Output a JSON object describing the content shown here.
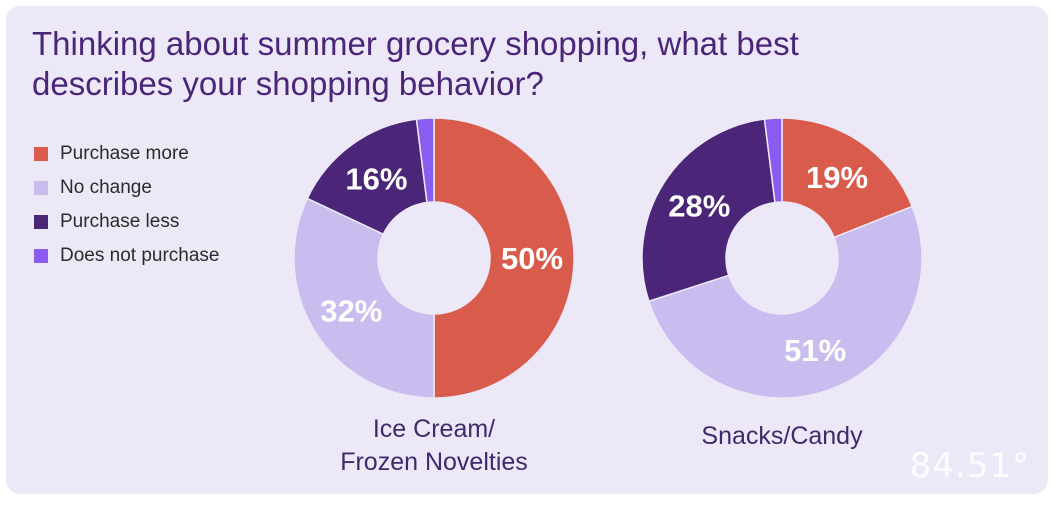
{
  "title": "Thinking about summer grocery shopping, what best describes your shopping behavior?",
  "logo_text": "84.51°",
  "colors": {
    "purchase_more": "#d95b4b",
    "no_change": "#c9bcef",
    "purchase_less": "#4b2577",
    "does_not_purchase": "#8b5cf0"
  },
  "legend": [
    {
      "label": "Purchase more",
      "color": "#d95b4b"
    },
    {
      "label": "No change",
      "color": "#c9bcef"
    },
    {
      "label": "Purchase less",
      "color": "#4b2577"
    },
    {
      "label": "Does not purchase",
      "color": "#8b5cf0"
    }
  ],
  "chart_data": [
    {
      "type": "pie",
      "title": "Ice Cream/\nFrozen Novelties",
      "title_lines": [
        "Ice Cream/",
        "Frozen Novelties"
      ],
      "categories": [
        "Purchase more",
        "No change",
        "Purchase less",
        "Does not purchase"
      ],
      "values": [
        50,
        32,
        16,
        2
      ],
      "labels": [
        "50%",
        "32%",
        "16%",
        ""
      ]
    },
    {
      "type": "pie",
      "title": "Snacks/Candy",
      "title_lines": [
        "Snacks/Candy"
      ],
      "categories": [
        "Purchase more",
        "No change",
        "Purchase less",
        "Does not purchase"
      ],
      "values": [
        19,
        51,
        28,
        2
      ],
      "labels": [
        "19%",
        "51%",
        "28%",
        ""
      ]
    }
  ]
}
